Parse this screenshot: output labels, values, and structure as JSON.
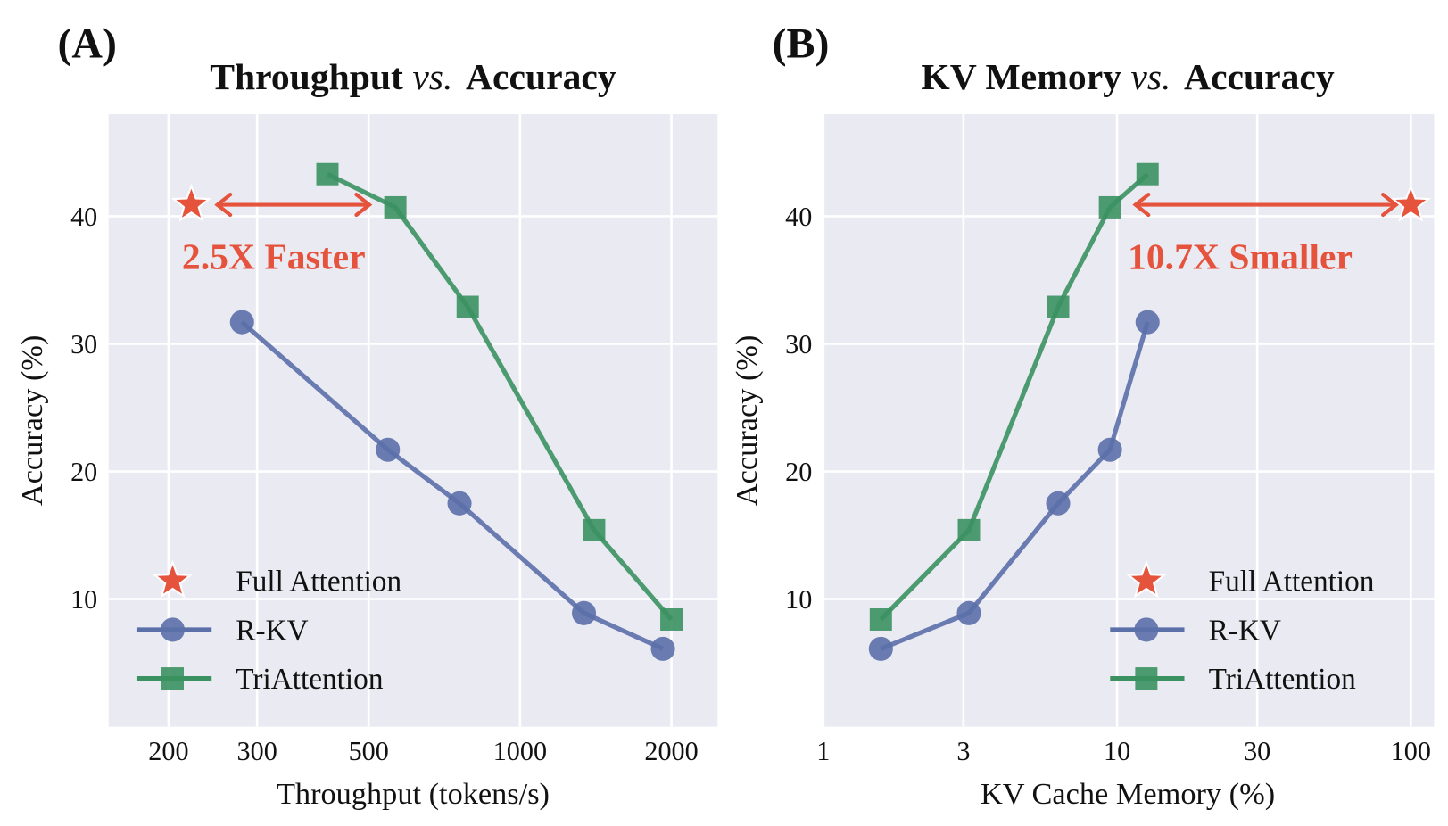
{
  "chart_data": [
    {
      "type": "line",
      "panel_label": "(A)",
      "title_parts": [
        "Throughput",
        "vs.",
        "Accuracy"
      ],
      "xlabel": "Throughput (tokens/s)",
      "ylabel": "Accuracy (%)",
      "xscale": "log",
      "xlim": [
        152,
        2470
      ],
      "ylim": [
        0,
        48
      ],
      "xticks": [
        200,
        300,
        500,
        1000,
        2000
      ],
      "xtick_labels": [
        "200",
        "300",
        "500",
        "1000",
        "2000"
      ],
      "yticks": [
        10,
        20,
        30,
        40
      ],
      "ytick_labels": [
        "10",
        "20",
        "30",
        "40"
      ],
      "grid": true,
      "legend_position": "lower-left",
      "series": [
        {
          "name": "Full Attention",
          "marker": "star",
          "color": "#e5533d",
          "x": [
            222
          ],
          "y": [
            40.9
          ]
        },
        {
          "name": "R-KV",
          "marker": "circle",
          "color": "#5b6fa8",
          "x": [
            280,
            546,
            758,
            1340,
            1924
          ],
          "y": [
            31.7,
            21.7,
            17.5,
            8.9,
            6.1
          ]
        },
        {
          "name": "TriAttention",
          "marker": "square",
          "color": "#3b9160",
          "x": [
            414,
            565,
            787,
            1404,
            2000
          ],
          "y": [
            43.3,
            40.7,
            32.9,
            15.4,
            8.4
          ]
        }
      ],
      "annotation": {
        "text": "2.5X Faster",
        "color": "#e5533d",
        "arrow_from_x": 222,
        "arrow_to_x": 565,
        "y": 40.9
      }
    },
    {
      "type": "line",
      "panel_label": "(B)",
      "title_parts": [
        "KV Memory",
        "vs.",
        "Accuracy"
      ],
      "xlabel": "KV Cache Memory (%)",
      "ylabel": "Accuracy (%)",
      "xscale": "log",
      "xlim": [
        1,
        120
      ],
      "ylim": [
        0,
        48
      ],
      "xticks": [
        1,
        3,
        10,
        30,
        100
      ],
      "xtick_labels": [
        "1",
        "3",
        "10",
        "30",
        "100"
      ],
      "yticks": [
        10,
        20,
        30,
        40
      ],
      "ytick_labels": [
        "10",
        "20",
        "30",
        "40"
      ],
      "grid": true,
      "legend_position": "lower-right",
      "series": [
        {
          "name": "Full Attention",
          "marker": "star",
          "color": "#e5533d",
          "x": [
            100
          ],
          "y": [
            40.9
          ]
        },
        {
          "name": "R-KV",
          "marker": "circle",
          "color": "#5b6fa8",
          "x": [
            1.57,
            3.13,
            6.3,
            9.46,
            12.7
          ],
          "y": [
            6.1,
            8.9,
            17.5,
            21.7,
            31.7
          ]
        },
        {
          "name": "TriAttention",
          "marker": "square",
          "color": "#3b9160",
          "x": [
            1.57,
            3.13,
            6.3,
            9.46,
            12.7
          ],
          "y": [
            8.4,
            15.4,
            32.9,
            40.7,
            43.3
          ]
        }
      ],
      "annotation": {
        "text": "10.7X Smaller",
        "color": "#e5533d",
        "arrow_from_x": 12.7,
        "arrow_to_x": 100,
        "y": 40.9
      }
    }
  ]
}
